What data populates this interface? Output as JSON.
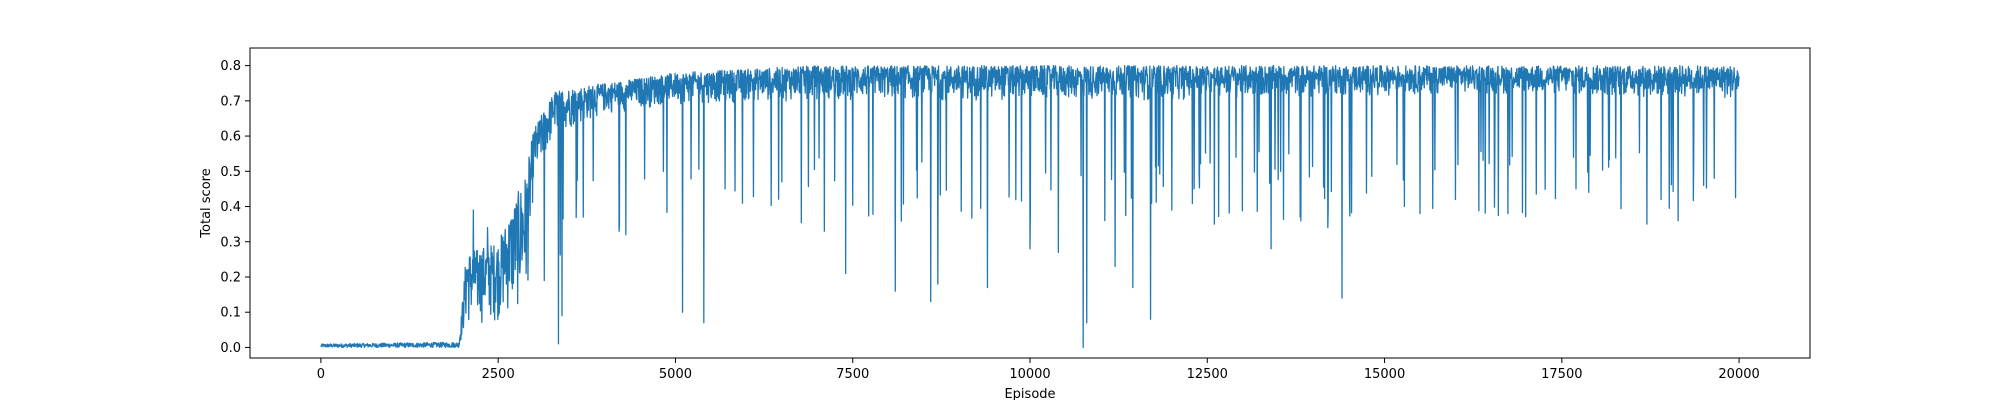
{
  "chart_data": {
    "type": "line",
    "title": "",
    "xlabel": "Episode",
    "ylabel": "Total score",
    "xlim": [
      -1000,
      21000
    ],
    "ylim": [
      -0.03,
      0.85
    ],
    "xticks": [
      0,
      2500,
      5000,
      7500,
      10000,
      12500,
      15000,
      17500,
      20000
    ],
    "yticks": [
      0.0,
      0.1,
      0.2,
      0.3,
      0.4,
      0.5,
      0.6,
      0.7,
      0.8
    ],
    "grid": false,
    "legend": "none",
    "series": [
      {
        "name": "Total score",
        "color": "#1f77b4",
        "noise_seed": 12345,
        "episodes": 20000,
        "envelope": [
          {
            "x": 0,
            "low": 0.0,
            "high": 0.01
          },
          {
            "x": 1950,
            "low": 0.0,
            "high": 0.015
          },
          {
            "x": 2050,
            "low": 0.05,
            "high": 0.27
          },
          {
            "x": 2500,
            "low": 0.07,
            "high": 0.3
          },
          {
            "x": 2900,
            "low": 0.1,
            "high": 0.5
          },
          {
            "x": 3000,
            "low": 0.45,
            "high": 0.62
          },
          {
            "x": 3300,
            "low": 0.6,
            "high": 0.73
          },
          {
            "x": 4000,
            "low": 0.66,
            "high": 0.75
          },
          {
            "x": 5000,
            "low": 0.69,
            "high": 0.78
          },
          {
            "x": 7000,
            "low": 0.7,
            "high": 0.8
          },
          {
            "x": 12000,
            "low": 0.7,
            "high": 0.8
          },
          {
            "x": 16000,
            "low": 0.72,
            "high": 0.8
          },
          {
            "x": 20000,
            "low": 0.7,
            "high": 0.8
          }
        ],
        "dips": [
          {
            "x": 2150,
            "y": 0.39
          },
          {
            "x": 2350,
            "y": 0.34
          },
          {
            "x": 3150,
            "y": 0.19
          },
          {
            "x": 3350,
            "y": 0.01
          },
          {
            "x": 3400,
            "y": 0.09
          },
          {
            "x": 3700,
            "y": 0.37
          },
          {
            "x": 4300,
            "y": 0.32
          },
          {
            "x": 5100,
            "y": 0.1
          },
          {
            "x": 5400,
            "y": 0.07
          },
          {
            "x": 5700,
            "y": 0.45
          },
          {
            "x": 6500,
            "y": 0.47
          },
          {
            "x": 7100,
            "y": 0.33
          },
          {
            "x": 7400,
            "y": 0.21
          },
          {
            "x": 8100,
            "y": 0.16
          },
          {
            "x": 8600,
            "y": 0.13
          },
          {
            "x": 8700,
            "y": 0.18
          },
          {
            "x": 9400,
            "y": 0.17
          },
          {
            "x": 10000,
            "y": 0.28
          },
          {
            "x": 10400,
            "y": 0.27
          },
          {
            "x": 10750,
            "y": 0.0
          },
          {
            "x": 10800,
            "y": 0.07
          },
          {
            "x": 11200,
            "y": 0.23
          },
          {
            "x": 11450,
            "y": 0.17
          },
          {
            "x": 11700,
            "y": 0.08
          },
          {
            "x": 12000,
            "y": 0.39
          },
          {
            "x": 12600,
            "y": 0.35
          },
          {
            "x": 13400,
            "y": 0.28
          },
          {
            "x": 14200,
            "y": 0.34
          },
          {
            "x": 14400,
            "y": 0.14
          },
          {
            "x": 15500,
            "y": 0.38
          },
          {
            "x": 16000,
            "y": 0.42
          },
          {
            "x": 17700,
            "y": 0.45
          },
          {
            "x": 18700,
            "y": 0.35
          },
          {
            "x": 18900,
            "y": 0.42
          },
          {
            "x": 19500,
            "y": 0.46
          }
        ]
      }
    ]
  }
}
